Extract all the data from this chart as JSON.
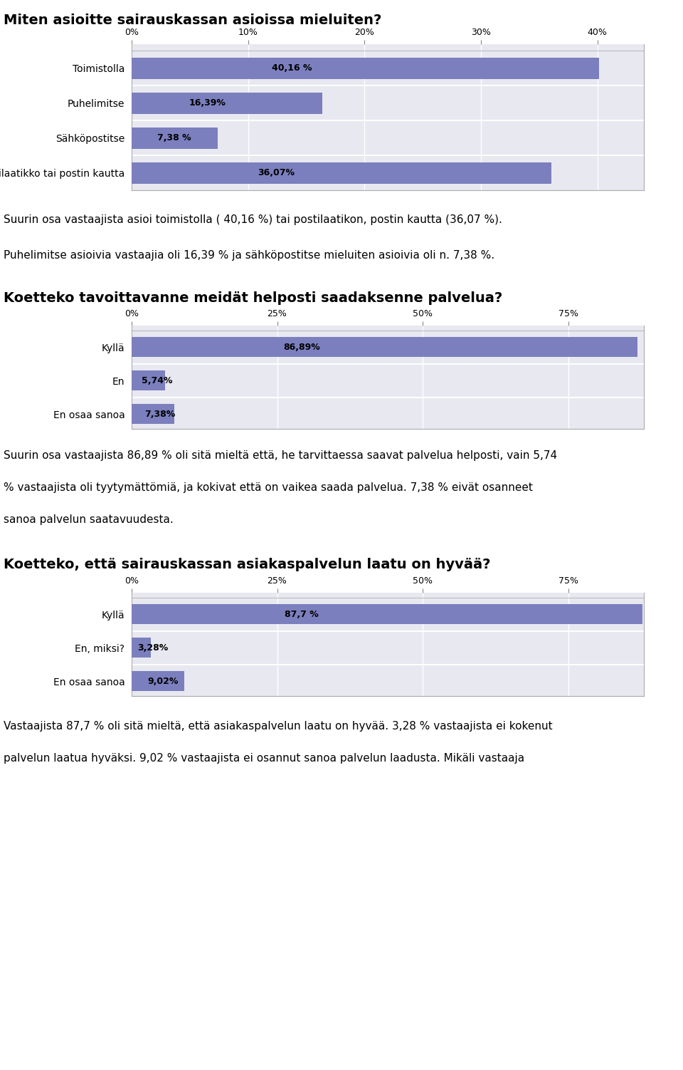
{
  "chart1": {
    "title": "Miten asioitte sairauskassan asioissa mieluiten?",
    "categories": [
      "Toimistolla",
      "Puhelimitse",
      "Sähköpostitse",
      "Postilaatikko tai postin kautta"
    ],
    "values": [
      40.16,
      16.39,
      7.38,
      36.07
    ],
    "labels": [
      "40,16 %",
      "16,39%",
      "7,38 %",
      "36,07%"
    ],
    "xlim": [
      0,
      44
    ],
    "xticks": [
      0,
      10,
      20,
      30,
      40
    ],
    "xtick_labels": [
      "0%",
      "10%",
      "20%",
      "30%",
      "40%"
    ]
  },
  "text1": "Suurin osa vastaajista asioi toimistolla ( 40,16 %) tai postilaatikon, postin kautta (36,07 %).",
  "text2": "Puhelimitse asioivia vastaajia oli 16,39 % ja sähköpostitse mieluiten asioivia oli n. 7,38 %.",
  "chart2": {
    "title": "Koetteko tavoittavanne meidät helposti saadaksenne palvelua?",
    "categories": [
      "Kyllä",
      "En",
      "En osaa sanoa"
    ],
    "values": [
      86.89,
      5.74,
      7.38
    ],
    "labels": [
      "86,89%",
      "5,74%",
      "7,38%"
    ],
    "xlim": [
      0,
      88
    ],
    "xticks": [
      0,
      25,
      50,
      75
    ],
    "xtick_labels": [
      "0%",
      "25%",
      "50%",
      "75%"
    ]
  },
  "text3_line1": "Suurin osa vastaajista 86,89 % oli sitä mieltä että, he tarvittaessa saavat palvelua helposti, vain 5,74",
  "text3_line2": "% vastaajista oli tyytymättömiä, ja kokivat että on vaikea saada palvelua. 7,38 % eivät osanneet",
  "text3_line3": "sanoa palvelun saatavuudesta.",
  "chart3": {
    "title": "Koetteko, että sairauskassan asiakaspalvelun laatu on hyvää?",
    "categories": [
      "Kyllä",
      "En, miksi?",
      "En osaa sanoa"
    ],
    "values": [
      87.7,
      3.28,
      9.02
    ],
    "labels": [
      "87,7 %",
      "3,28%",
      "9,02%"
    ],
    "xlim": [
      0,
      88
    ],
    "xticks": [
      0,
      25,
      50,
      75
    ],
    "xtick_labels": [
      "0%",
      "25%",
      "50%",
      "75%"
    ]
  },
  "text4_line1": "Vastaajista 87,7 % oli sitä mieltä, että asiakaspalvelun laatu on hyvää. 3,28 % vastaajista ei kokenut",
  "text4_line2": "palvelun laatua hyväksi. 9,02 % vastaajista ei osannut sanoa palvelun laadusta. Mikäli vastaaja",
  "bg_color": "#ffffff",
  "chart_bg": "#e8e8f0",
  "bar_color": "#7b7fbe",
  "bar_color_dark": "#6b6fae",
  "text_color": "#000000",
  "border_color": "#aaaaaa",
  "font_size_title": 14,
  "font_size_text": 11,
  "font_size_tick": 9,
  "font_size_label": 9,
  "font_size_ytick": 10
}
